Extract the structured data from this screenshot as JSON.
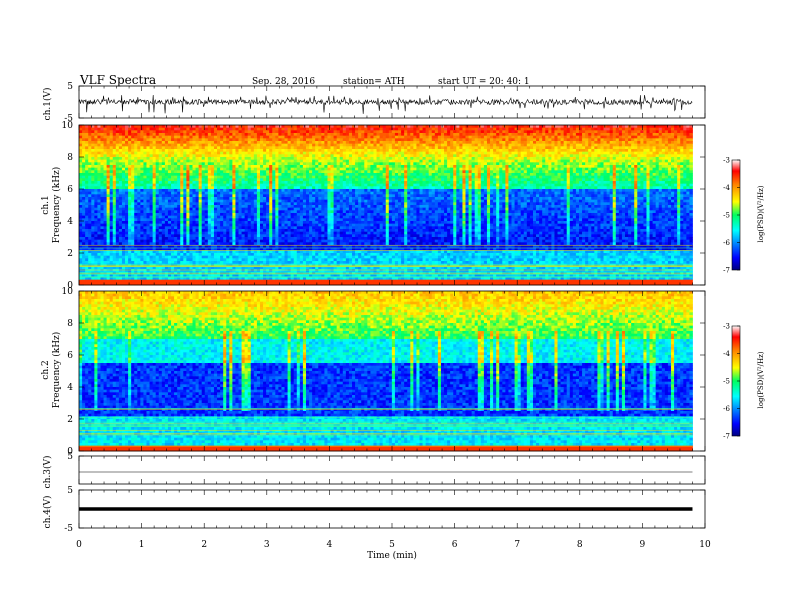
{
  "header": {
    "title": "VLF  Spectra",
    "date": "Sep. 28, 2016",
    "station": "station= ATH",
    "start": "start  UT  =   20: 40: 1"
  },
  "chart_data": [
    {
      "type": "line",
      "name": "ch1-waveform",
      "ylabel": "ch.1(V)",
      "ylim": [
        -5,
        5
      ],
      "yticks": [
        "5",
        "-5"
      ],
      "xlim": [
        0,
        10
      ],
      "data_extent_min": 9.8,
      "amplitude": "noisy broadband, baseline near 0 with spikes to about -3"
    },
    {
      "type": "heatmap",
      "name": "ch1-spectrogram",
      "ylabel_lines": [
        "ch.1",
        "Frequency  (kHz)"
      ],
      "ylim": [
        0,
        10
      ],
      "yticks": [
        "0",
        "2",
        "4",
        "6",
        "8",
        "10"
      ],
      "xlim": [
        0,
        10
      ],
      "data_extent_min": 9.8
    },
    {
      "type": "heatmap",
      "name": "ch2-spectrogram",
      "ylabel_lines": [
        "ch.2",
        "Frequency  (kHz)"
      ],
      "ylim": [
        0,
        10
      ],
      "yticks": [
        "0",
        "2",
        "4",
        "6",
        "8",
        "10"
      ],
      "xlim": [
        0,
        10
      ],
      "data_extent_min": 9.8
    },
    {
      "type": "line",
      "name": "ch3-waveform",
      "ylabel": "ch.3(V)",
      "ylim": [
        -5,
        5
      ],
      "yticks": [
        "5"
      ],
      "xlim": [
        0,
        10
      ],
      "data_extent_min": 9.8,
      "level": 0
    },
    {
      "type": "line",
      "name": "ch4-waveform",
      "ylabel": "ch.4(V)",
      "ylim": [
        -5,
        5
      ],
      "yticks": [
        "5",
        "-5"
      ],
      "xlim": [
        0,
        10
      ],
      "data_extent_min": 9.8,
      "level": 0
    }
  ],
  "xaxis": {
    "label": "Time  (min)",
    "ticks": [
      "0",
      "1",
      "2",
      "3",
      "4",
      "5",
      "6",
      "7",
      "8",
      "9",
      "10"
    ]
  },
  "colorbars": [
    {
      "label": "log(PSD)(V²/Hz)",
      "ticks": [
        "-3",
        "-4",
        "-5",
        "-6",
        "-7"
      ],
      "range": [
        -7,
        -3
      ]
    },
    {
      "label": "log(PSD)(V²/Hz)",
      "ticks": [
        "-3",
        "-4",
        "-5",
        "-6",
        "-7"
      ],
      "range": [
        -7,
        -3
      ]
    }
  ]
}
